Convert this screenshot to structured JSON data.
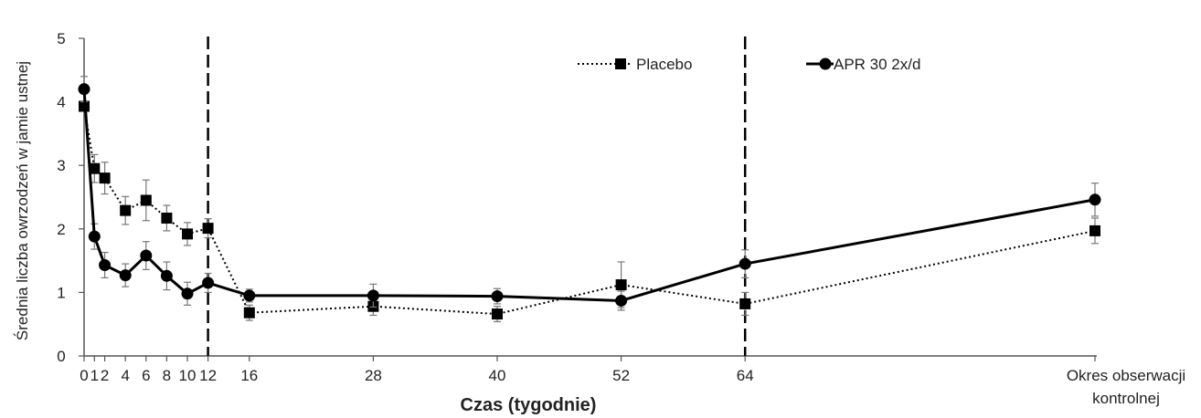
{
  "chart_data": {
    "type": "line",
    "xlabel": "Czas (tygodnie)",
    "ylabel": "Średnia liczba owrzodzeń w jamie ustnej",
    "ylim": [
      0,
      5
    ],
    "yticks": [
      "0",
      "1",
      "2",
      "3",
      "4",
      "5"
    ],
    "xticks": [
      "0",
      "1",
      "2",
      "4",
      "6",
      "8",
      "10",
      "12",
      "16",
      "28",
      "40",
      "52",
      "64"
    ],
    "followup_label": [
      "Okres obserwacji",
      "kontrolnej"
    ],
    "vertical_dashed_lines_at": [
      12,
      64
    ],
    "legend_position": "top-right",
    "grid": false,
    "series": [
      {
        "name": "Placebo",
        "line_style": "dotted",
        "marker": "square",
        "color": "#000000",
        "x": [
          "0",
          "1",
          "2",
          "4",
          "6",
          "8",
          "10",
          "12",
          "16",
          "28",
          "40",
          "52",
          "64",
          "Okres obserwacji kontrolnej"
        ],
        "values": [
          3.93,
          2.95,
          2.8,
          2.29,
          2.45,
          2.17,
          1.92,
          2.01,
          0.68,
          0.78,
          0.66,
          1.12,
          0.82,
          1.97
        ],
        "error": [
          0.0,
          0.22,
          0.25,
          0.22,
          0.32,
          0.2,
          0.18,
          0.15,
          0.12,
          0.14,
          0.12,
          0.36,
          0.18,
          0.2
        ]
      },
      {
        "name": "APR 30 2x/d",
        "line_style": "solid",
        "marker": "circle",
        "color": "#000000",
        "x": [
          "0",
          "1",
          "2",
          "4",
          "6",
          "8",
          "10",
          "12",
          "16",
          "28",
          "40",
          "52",
          "64",
          "Okres obserwacji kontrolnej"
        ],
        "values": [
          4.2,
          1.88,
          1.43,
          1.27,
          1.58,
          1.26,
          0.98,
          1.15,
          0.95,
          0.95,
          0.94,
          0.87,
          1.45,
          2.46
        ],
        "error": [
          0.2,
          0.2,
          0.2,
          0.18,
          0.22,
          0.22,
          0.18,
          0.15,
          0.1,
          0.18,
          0.12,
          0.15,
          0.22,
          0.26
        ]
      }
    ]
  }
}
